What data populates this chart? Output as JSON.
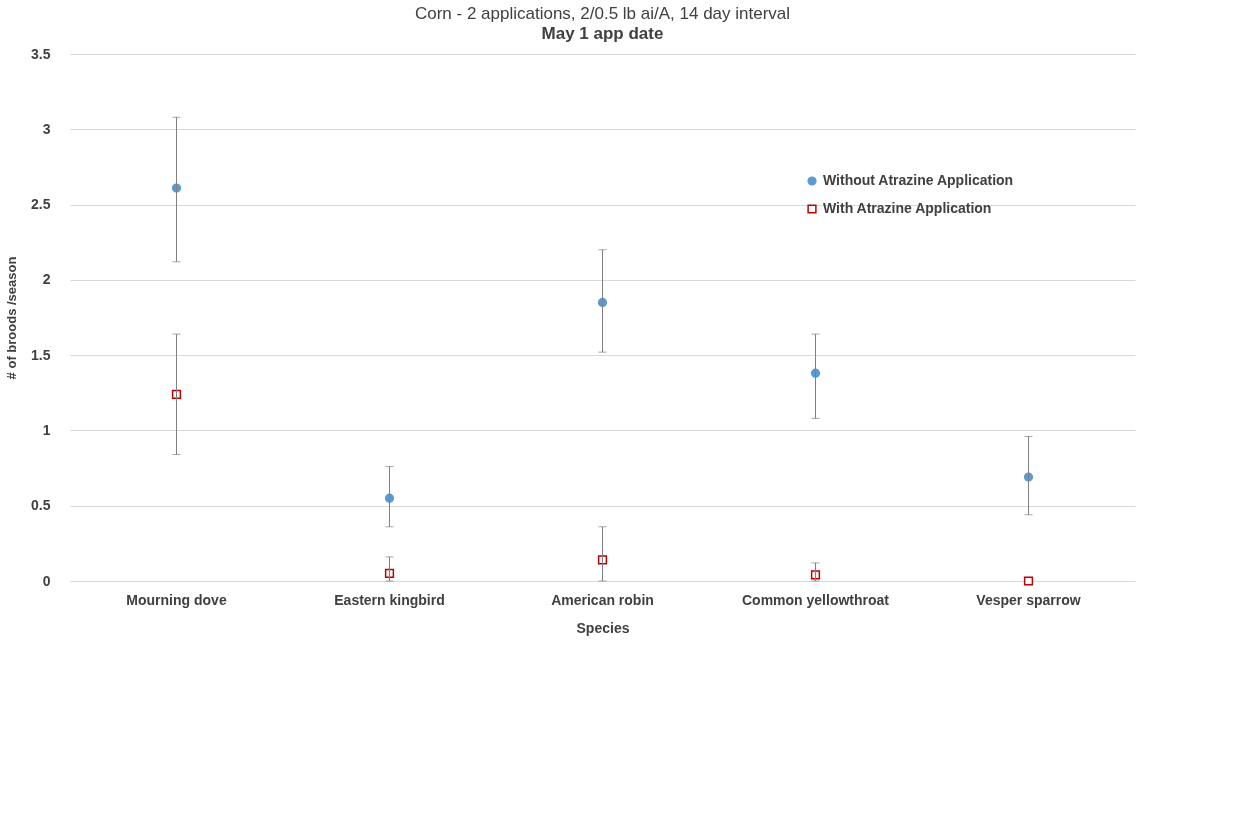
{
  "chart_data": {
    "type": "scatter",
    "title": "Corn - 2 applications, 2/0.5 lb ai/A, 14 day interval",
    "subtitle": "May 1 app date",
    "xlabel": "Species",
    "ylabel": "# of broods /season",
    "categories": [
      "Mourning dove",
      "Eastern kingbird",
      "American robin",
      "Common yellowthroat",
      "Vesper sparrow"
    ],
    "series": [
      {
        "name": "Without Atrazine Application",
        "color": "#5b9bd5",
        "marker": "circle",
        "values": [
          2.61,
          0.55,
          1.85,
          1.38,
          0.69
        ],
        "errors": [
          [
            2.12,
            3.08
          ],
          [
            0.36,
            0.76
          ],
          [
            1.52,
            2.2
          ],
          [
            1.08,
            1.64
          ],
          [
            0.44,
            0.96
          ]
        ]
      },
      {
        "name": "With Atrazine Application",
        "color": "#c00000",
        "marker": "square",
        "values": [
          1.24,
          0.05,
          0.14,
          0.04,
          0
        ],
        "errors": [
          [
            0.84,
            1.64
          ],
          [
            0,
            0.16
          ],
          [
            0,
            0.36
          ],
          [
            0,
            0.12
          ],
          null
        ]
      }
    ],
    "ylim": [
      0,
      3.5
    ],
    "yticks": [
      0,
      0.5,
      1,
      1.5,
      2,
      2.5,
      3,
      3.5
    ],
    "grid": "y",
    "legend": "top right"
  }
}
